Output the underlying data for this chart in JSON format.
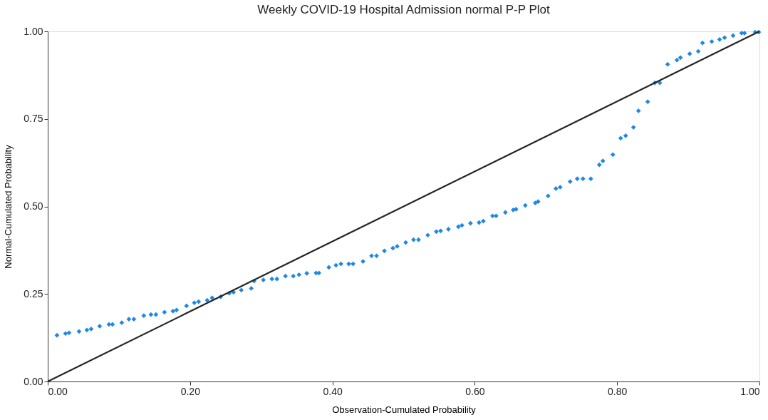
{
  "chart_data": {
    "type": "scatter",
    "title": "Weekly COVID-19 Hospital Admission normal P-P Plot",
    "xlabel": "Observation-Cumulated Probability",
    "ylabel": "Normal-Cumulated Probability",
    "xlim": [
      0,
      1
    ],
    "ylim": [
      0,
      1
    ],
    "xticks": [
      {
        "value": 0,
        "label": "0.00"
      },
      {
        "value": 0.2,
        "label": "0.20"
      },
      {
        "value": 0.4,
        "label": "0.40"
      },
      {
        "value": 0.6,
        "label": "0.60"
      },
      {
        "value": 0.8,
        "label": "0.80"
      },
      {
        "value": 1,
        "label": "1.00"
      }
    ],
    "yticks": [
      {
        "value": 0,
        "label": "0.00"
      },
      {
        "value": 0.25,
        "label": "0.25"
      },
      {
        "value": 0.5,
        "label": "0.50"
      },
      {
        "value": 0.75,
        "label": "0.75"
      },
      {
        "value": 1,
        "label": "1.00"
      }
    ],
    "grid": false,
    "legend": false,
    "marker": "diamond",
    "series": [
      {
        "color": "#1e88e5",
        "x": [
          0.013,
          0.025,
          0.03,
          0.044,
          0.055,
          0.061,
          0.073,
          0.086,
          0.091,
          0.104,
          0.114,
          0.121,
          0.135,
          0.145,
          0.152,
          0.164,
          0.176,
          0.181,
          0.195,
          0.206,
          0.212,
          0.224,
          0.231,
          0.243,
          0.255,
          0.261,
          0.272,
          0.286,
          0.29,
          0.303,
          0.315,
          0.322,
          0.334,
          0.345,
          0.353,
          0.364,
          0.377,
          0.381,
          0.395,
          0.405,
          0.412,
          0.423,
          0.429,
          0.443,
          0.455,
          0.462,
          0.473,
          0.485,
          0.491,
          0.503,
          0.514,
          0.521,
          0.534,
          0.546,
          0.552,
          0.563,
          0.577,
          0.582,
          0.594,
          0.606,
          0.612,
          0.625,
          0.63,
          0.643,
          0.654,
          0.658,
          0.671,
          0.685,
          0.689,
          0.703,
          0.714,
          0.72,
          0.734,
          0.744,
          0.752,
          0.763,
          0.775,
          0.78,
          0.794,
          0.805,
          0.812,
          0.823,
          0.83,
          0.843,
          0.853,
          0.86,
          0.871,
          0.884,
          0.889,
          0.902,
          0.914,
          0.92,
          0.933,
          0.944,
          0.951,
          0.963,
          0.975,
          0.979,
          0.994,
          0.999
        ],
        "values": [
          0.132,
          0.137,
          0.139,
          0.143,
          0.147,
          0.15,
          0.158,
          0.163,
          0.163,
          0.168,
          0.178,
          0.178,
          0.188,
          0.191,
          0.191,
          0.198,
          0.201,
          0.204,
          0.216,
          0.225,
          0.228,
          0.232,
          0.239,
          0.242,
          0.252,
          0.255,
          0.261,
          0.266,
          0.287,
          0.29,
          0.293,
          0.293,
          0.301,
          0.301,
          0.305,
          0.309,
          0.31,
          0.31,
          0.326,
          0.332,
          0.336,
          0.336,
          0.336,
          0.343,
          0.359,
          0.359,
          0.373,
          0.381,
          0.386,
          0.397,
          0.405,
          0.405,
          0.418,
          0.428,
          0.43,
          0.435,
          0.442,
          0.446,
          0.452,
          0.454,
          0.458,
          0.473,
          0.473,
          0.483,
          0.49,
          0.492,
          0.503,
          0.51,
          0.514,
          0.53,
          0.551,
          0.555,
          0.571,
          0.579,
          0.579,
          0.579,
          0.619,
          0.63,
          0.648,
          0.695,
          0.702,
          0.726,
          0.773,
          0.799,
          0.853,
          0.853,
          0.906,
          0.918,
          0.925,
          0.936,
          0.943,
          0.967,
          0.971,
          0.977,
          0.982,
          0.988,
          0.995,
          0.995,
          0.998,
          0.998
        ]
      },
      {
        "type": "line",
        "marker": "none",
        "color": "#262626",
        "x": [
          0,
          1
        ],
        "values": [
          0,
          1
        ]
      }
    ]
  }
}
